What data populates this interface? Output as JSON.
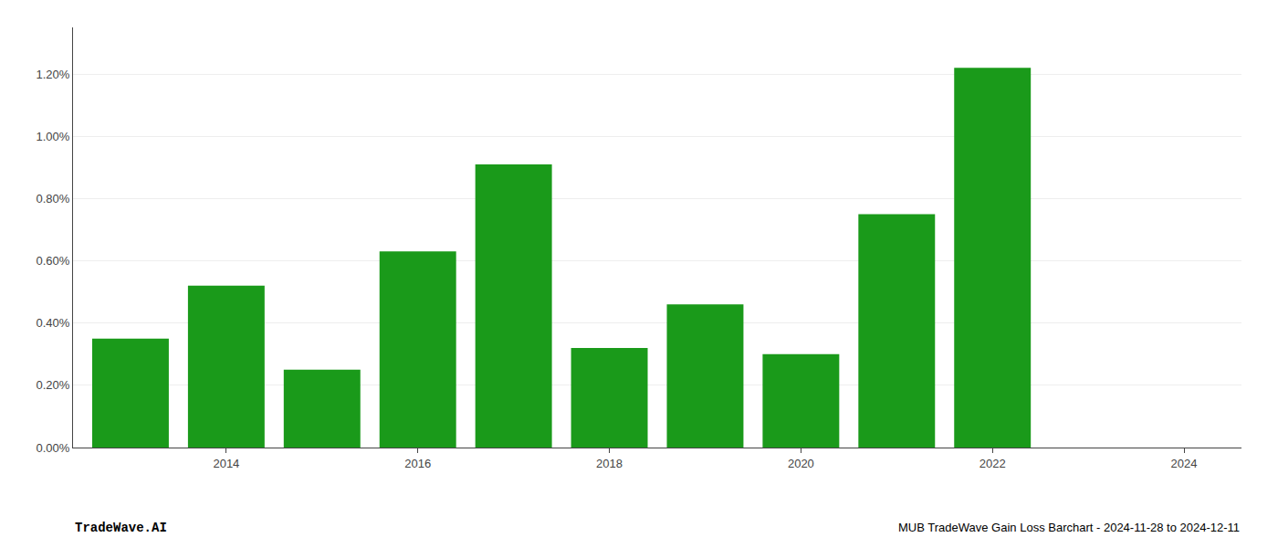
{
  "chart_data": {
    "type": "bar",
    "x": [
      2013,
      2014,
      2015,
      2016,
      2017,
      2018,
      2019,
      2020,
      2021,
      2022
    ],
    "values": [
      0.0035,
      0.0052,
      0.0025,
      0.0063,
      0.0091,
      0.0032,
      0.0046,
      0.003,
      0.0075,
      0.0122
    ],
    "color": "#1a9a1a",
    "xlim": [
      2012.4,
      2024.6
    ],
    "xticks": [
      2014,
      2016,
      2018,
      2020,
      2022,
      2024
    ],
    "ylim": [
      0,
      0.0135
    ],
    "yticks": [
      {
        "value": 0.0,
        "label": "0.00%"
      },
      {
        "value": 0.002,
        "label": "0.20%"
      },
      {
        "value": 0.004,
        "label": "0.40%"
      },
      {
        "value": 0.006,
        "label": "0.60%"
      },
      {
        "value": 0.008,
        "label": "0.80%"
      },
      {
        "value": 0.01,
        "label": "1.00%"
      },
      {
        "value": 0.012,
        "label": "1.20%"
      }
    ],
    "grid": "y",
    "annotations": [
      "TradeWave.AI",
      "MUB TradeWave Gain Loss Barchart - 2024-11-28 to 2024-12-11"
    ]
  }
}
